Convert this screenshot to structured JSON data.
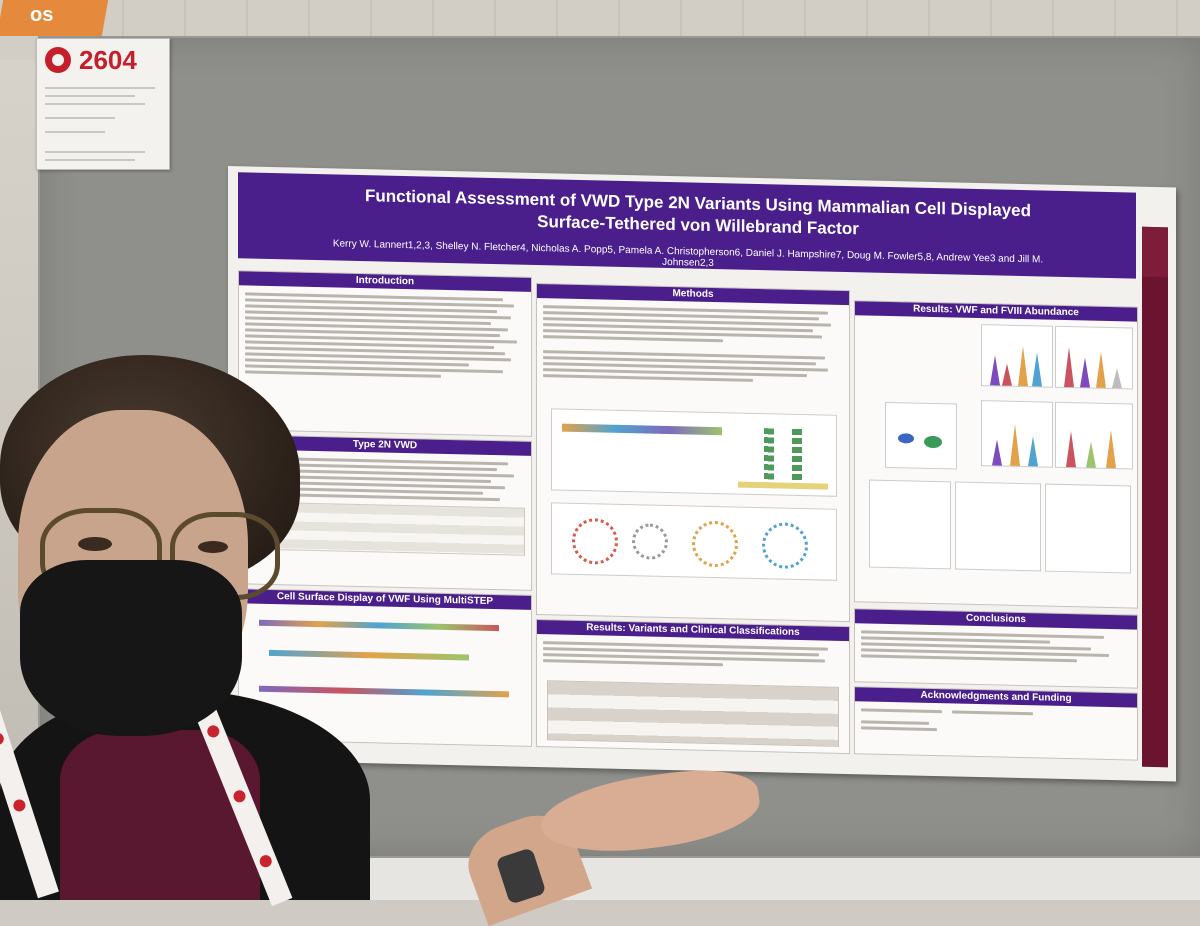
{
  "corner_sign": {
    "text": "os"
  },
  "number_card": {
    "number": "2604"
  },
  "poster": {
    "title_line1": "Functional Assessment of VWD Type 2N Variants Using Mammalian Cell Displayed",
    "title_line2": "Surface-Tethered von Willebrand Factor",
    "authors": "Kerry W. Lannert1,2,3, Shelley N. Fletcher4, Nicholas A. Popp5, Pamela A. Christopherson6, Daniel J. Hampshire7, Doug M. Fowler5,8, Andrew Yee3 and Jill M. Johnsen2,3",
    "sections": {
      "introduction": "Introduction",
      "methods": "Methods",
      "results_vwf": "Results: VWF and FVIII Abundance",
      "type2n": "Type 2N VWD",
      "cell_surface": "Cell Surface Display of VWF Using MultiSTEP",
      "results_variants": "Results: Variants and Clinical Classifications",
      "conclusions": "Conclusions",
      "acknowledgments": "Acknowledgments and Funding"
    }
  },
  "colors": {
    "poster_header": "#4a1f8c",
    "side_strip": "#6a1430",
    "board": "#8f8f8c",
    "card_number": "#c41f2a"
  }
}
